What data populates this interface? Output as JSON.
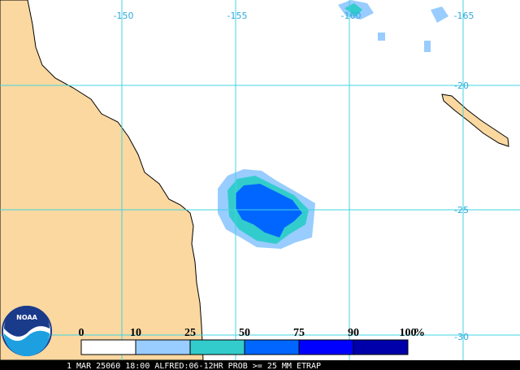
{
  "map": {
    "lon_labels": [
      "-150",
      "-155",
      "-160",
      "-165"
    ],
    "lat_labels": [
      "-20",
      "-25",
      "-30"
    ],
    "legend": {
      "labels": [
        "0",
        "10",
        "25",
        "50",
        "75",
        "90",
        "100"
      ],
      "unit": "%",
      "colors": [
        "#ffffff",
        "#99ccff",
        "#33cccc",
        "#0066ff",
        "#0000ff",
        "#0000aa"
      ]
    },
    "logo": "NOAA",
    "caption": "1 MAR 25060 18:00 ALFRED:06-12HR PROB >= 25 MM ETRAP"
  }
}
